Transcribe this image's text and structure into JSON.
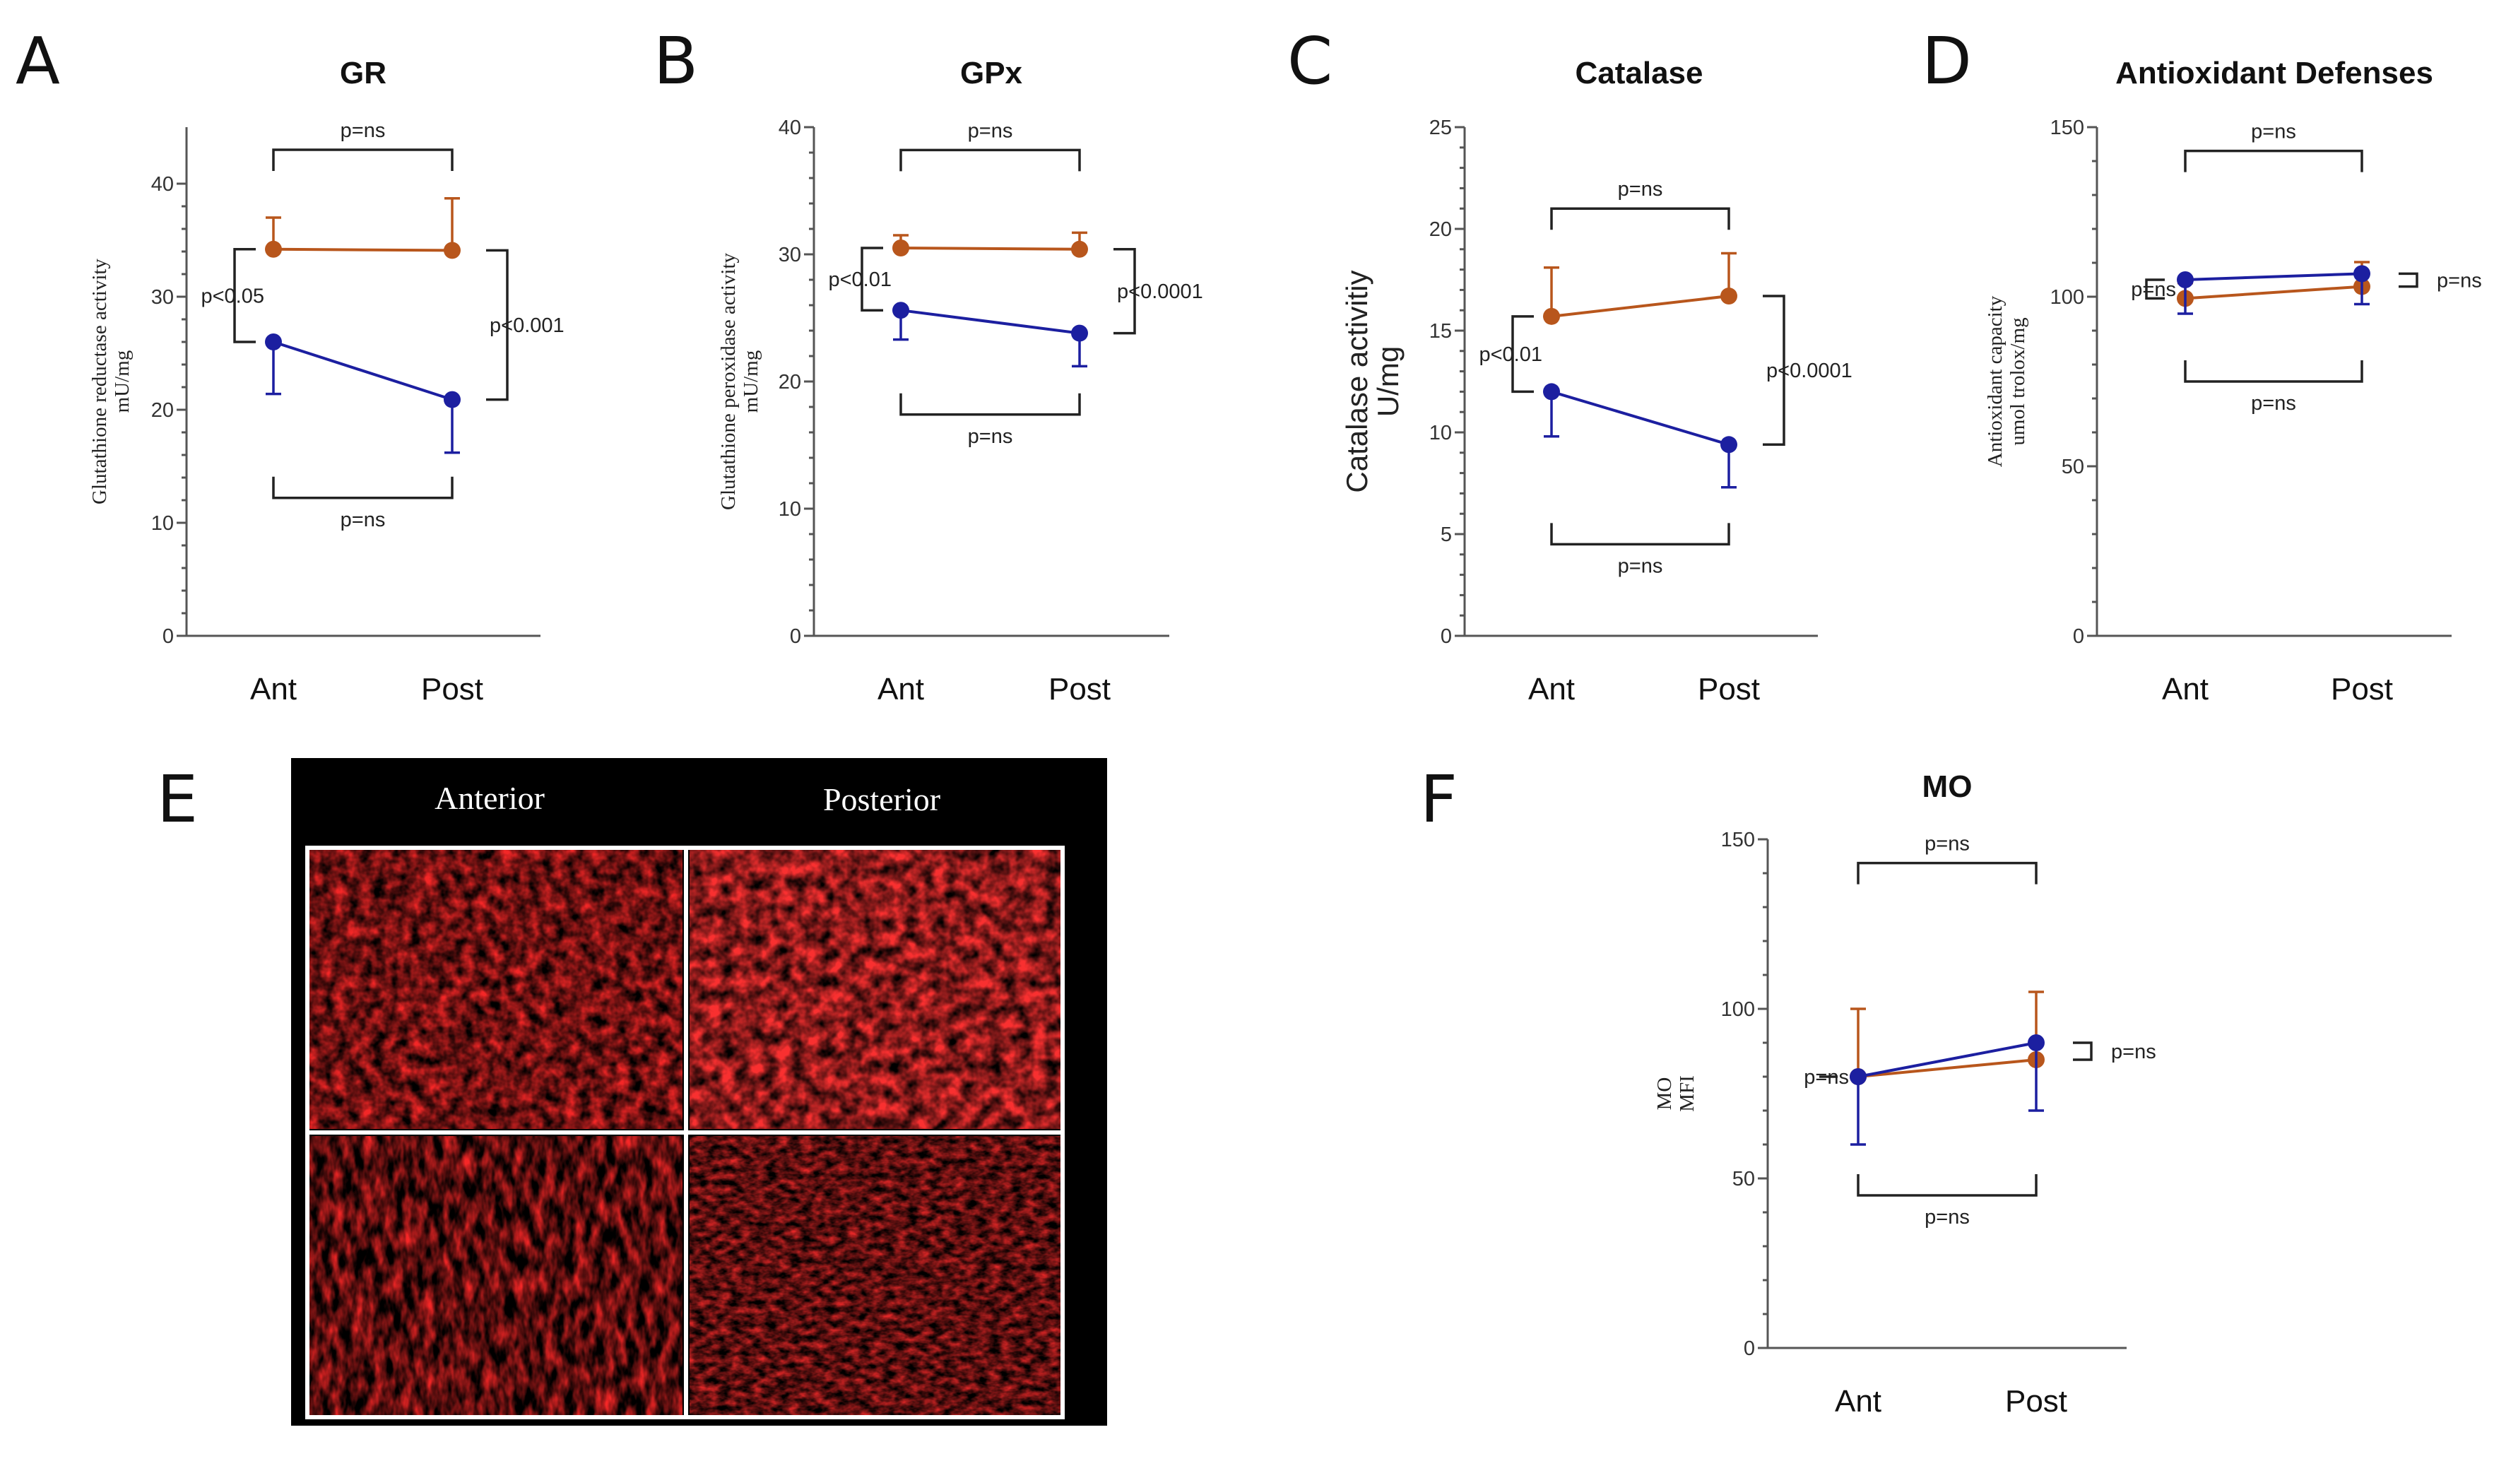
{
  "chart_data": [
    {
      "id": "A",
      "type": "line",
      "title": "GR",
      "ylabel": [
        "Glutathione reductase activity",
        "mU/mg"
      ],
      "ylabel_style": "serif",
      "categories": [
        "Ant",
        "Post"
      ],
      "ylim": [
        0,
        45
      ],
      "yticks": [
        0,
        10,
        20,
        30,
        40
      ],
      "series": [
        {
          "color": "#b8561c",
          "values": [
            34.2,
            34.1
          ],
          "errors": [
            2.8,
            4.6
          ],
          "err_dir": "up"
        },
        {
          "color": "#1c1fa0",
          "values": [
            26.0,
            20.9
          ],
          "errors": [
            4.6,
            4.7
          ],
          "err_dir": "down"
        }
      ],
      "annotations": [
        {
          "kind": "top",
          "text": "p=ns",
          "level": 43.0
        },
        {
          "kind": "bottom",
          "text": "p=ns",
          "level": 12.2
        },
        {
          "kind": "left",
          "text": "p<0.05"
        },
        {
          "kind": "right",
          "text": "p<0.001"
        }
      ]
    },
    {
      "id": "B",
      "type": "line",
      "title": "GPx",
      "ylabel": [
        "Glutathione peroxidase activity",
        "mU/mg"
      ],
      "ylabel_style": "serif",
      "categories": [
        "Ant",
        "Post"
      ],
      "ylim": [
        0,
        40
      ],
      "yticks": [
        0,
        10,
        20,
        30,
        40
      ],
      "series": [
        {
          "color": "#b8561c",
          "values": [
            30.5,
            30.4
          ],
          "errors": [
            1.0,
            1.3
          ],
          "err_dir": "up"
        },
        {
          "color": "#1c1fa0",
          "values": [
            25.6,
            23.8
          ],
          "errors": [
            2.3,
            2.6
          ],
          "err_dir": "down"
        }
      ],
      "annotations": [
        {
          "kind": "top",
          "text": "p=ns",
          "level": 38.2
        },
        {
          "kind": "bottom",
          "text": "p=ns",
          "level": 17.4
        },
        {
          "kind": "left",
          "text": "p<0.01"
        },
        {
          "kind": "right",
          "text": "p<0.0001"
        }
      ]
    },
    {
      "id": "C",
      "type": "line",
      "title": "Catalase",
      "ylabel": [
        "Catalase activitiy",
        "U/mg"
      ],
      "ylabel_style": "sans",
      "categories": [
        "Ant",
        "Post"
      ],
      "ylim": [
        0,
        25
      ],
      "yticks": [
        0,
        5,
        10,
        15,
        20,
        25
      ],
      "series": [
        {
          "color": "#b8561c",
          "values": [
            15.7,
            16.7
          ],
          "errors": [
            2.4,
            2.1
          ],
          "err_dir": "up"
        },
        {
          "color": "#1c1fa0",
          "values": [
            12.0,
            9.4
          ],
          "errors": [
            2.2,
            2.1
          ],
          "err_dir": "down"
        }
      ],
      "annotations": [
        {
          "kind": "top",
          "text": "p=ns",
          "level": 21.0
        },
        {
          "kind": "bottom",
          "text": "p=ns",
          "level": 4.5
        },
        {
          "kind": "left",
          "text": "p<0.01"
        },
        {
          "kind": "right",
          "text": "p<0.0001"
        }
      ]
    },
    {
      "id": "D",
      "type": "line",
      "title": "Antioxidant Defenses",
      "ylabel": [
        "Antioxidant capacity",
        "umol trolox/mg"
      ],
      "ylabel_style": "serif",
      "categories": [
        "Ant",
        "Post"
      ],
      "ylim": [
        0,
        150
      ],
      "yticks": [
        0,
        50,
        100,
        150
      ],
      "series": [
        {
          "color": "#b8561c",
          "values": [
            99.5,
            103.0
          ],
          "errors": [
            4.5,
            7.2
          ],
          "err_dir": "up"
        },
        {
          "color": "#1c1fa0",
          "values": [
            105.0,
            106.8
          ],
          "errors": [
            10.0,
            9.0
          ],
          "err_dir": "down"
        }
      ],
      "annotations": [
        {
          "kind": "top",
          "text": "p=ns",
          "level": 143.0
        },
        {
          "kind": "bottom",
          "text": "p=ns",
          "level": 75.0
        },
        {
          "kind": "left",
          "text": "p=ns"
        },
        {
          "kind": "right",
          "text": "p=ns"
        }
      ]
    },
    {
      "id": "F",
      "type": "line",
      "title": "MO",
      "ylabel": [
        "MO",
        "MFI"
      ],
      "ylabel_style": "serif",
      "categories": [
        "Ant",
        "Post"
      ],
      "ylim": [
        0,
        150
      ],
      "yticks": [
        0,
        50,
        100,
        150
      ],
      "series": [
        {
          "color": "#b8561c",
          "values": [
            80.0,
            85.0
          ],
          "errors": [
            20.0,
            20.0
          ],
          "err_dir": "up"
        },
        {
          "color": "#1c1fa0",
          "values": [
            80.0,
            90.0
          ],
          "errors": [
            20.0,
            20.0
          ],
          "err_dir": "down"
        }
      ],
      "annotations": [
        {
          "kind": "top",
          "text": "p=ns",
          "level": 143.0
        },
        {
          "kind": "bottom",
          "text": "p=ns",
          "level": 45.0
        },
        {
          "kind": "left",
          "text": "p=ns"
        },
        {
          "kind": "right",
          "text": "p=ns"
        }
      ]
    }
  ],
  "panel_letters": [
    "A",
    "B",
    "C",
    "D",
    "E",
    "F"
  ],
  "micrograph": {
    "headers": [
      "Anterior",
      "Posterior"
    ],
    "colors": {
      "background": "#000000",
      "tissue": "#e01010",
      "grid": "#ffffff"
    }
  }
}
